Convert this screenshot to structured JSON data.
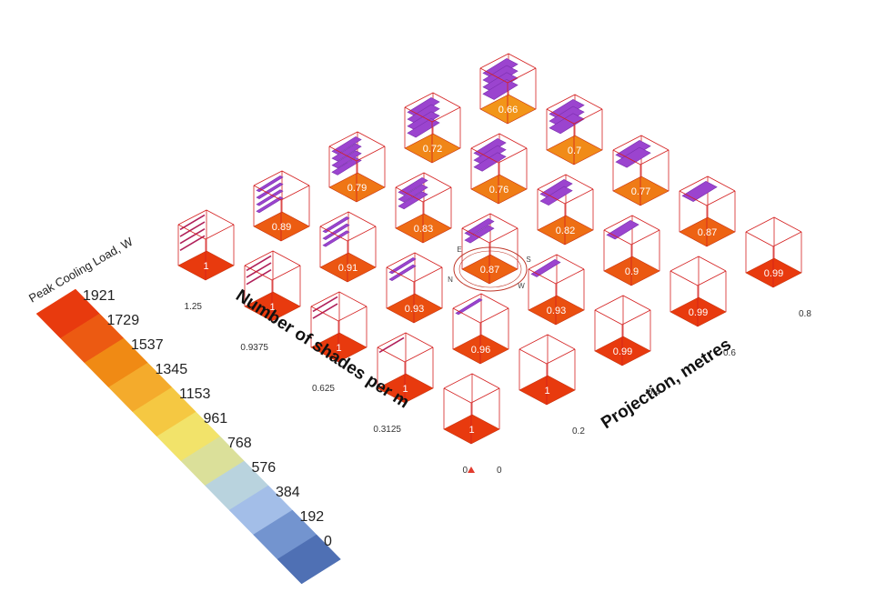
{
  "chart_data": {
    "type": "heatmap",
    "title": "",
    "x_axis": {
      "label": "Projection, metres",
      "ticks": [
        "0",
        "0.2",
        "0.4",
        "0.6",
        "0.8"
      ],
      "values": [
        0,
        0.2,
        0.4,
        0.6,
        0.8
      ]
    },
    "y_axis": {
      "label": "Number of shades per m",
      "ticks": [
        "0",
        "0.3125",
        "0.625",
        "0.9375",
        "1.25"
      ],
      "values": [
        0,
        0.3125,
        0.625,
        0.9375,
        1.25
      ]
    },
    "cells": [
      {
        "projection": 0,
        "shades": 0,
        "value": 1
      },
      {
        "projection": 0.2,
        "shades": 0,
        "value": 1
      },
      {
        "projection": 0.4,
        "shades": 0,
        "value": 0.99
      },
      {
        "projection": 0.6,
        "shades": 0,
        "value": 0.99
      },
      {
        "projection": 0.8,
        "shades": 0,
        "value": 0.99
      },
      {
        "projection": 0,
        "shades": 0.3125,
        "value": 1
      },
      {
        "projection": 0.2,
        "shades": 0.3125,
        "value": 0.96
      },
      {
        "projection": 0.4,
        "shades": 0.3125,
        "value": 0.93
      },
      {
        "projection": 0.6,
        "shades": 0.3125,
        "value": 0.9
      },
      {
        "projection": 0.8,
        "shades": 0.3125,
        "value": 0.87
      },
      {
        "projection": 0,
        "shades": 0.625,
        "value": 1
      },
      {
        "projection": 0.2,
        "shades": 0.625,
        "value": 0.93
      },
      {
        "projection": 0.4,
        "shades": 0.625,
        "value": 0.87
      },
      {
        "projection": 0.6,
        "shades": 0.625,
        "value": 0.82
      },
      {
        "projection": 0.8,
        "shades": 0.625,
        "value": 0.77
      },
      {
        "projection": 0,
        "shades": 0.9375,
        "value": 1
      },
      {
        "projection": 0.2,
        "shades": 0.9375,
        "value": 0.91
      },
      {
        "projection": 0.4,
        "shades": 0.9375,
        "value": 0.83
      },
      {
        "projection": 0.6,
        "shades": 0.9375,
        "value": 0.76
      },
      {
        "projection": 0.8,
        "shades": 0.9375,
        "value": 0.7
      },
      {
        "projection": 0,
        "shades": 1.25,
        "value": 1
      },
      {
        "projection": 0.2,
        "shades": 1.25,
        "value": 0.89
      },
      {
        "projection": 0.4,
        "shades": 1.25,
        "value": 0.79
      },
      {
        "projection": 0.6,
        "shades": 1.25,
        "value": 0.72
      },
      {
        "projection": 0.8,
        "shades": 1.25,
        "value": 0.66
      }
    ],
    "cell_colors": {
      "1": "#e83a0e",
      "0.99": "#e83a0e",
      "0.96": "#e9470f",
      "0.93": "#ea4f10",
      "0.91": "#eb5612",
      "0.9": "#eb5812",
      "0.89": "#ec5c12",
      "0.87": "#ed6213",
      "0.83": "#ee6c14",
      "0.82": "#ee6f14",
      "0.79": "#ef7615",
      "0.77": "#ef7b16",
      "0.76": "#ef7d16",
      "0.72": "#f08617",
      "0.7": "#f18b18",
      "0.66": "#f29519"
    },
    "legend": {
      "title": "Peak Cooling Load, W",
      "labels": [
        "1921",
        "1729",
        "1537",
        "1345",
        "1153",
        "961",
        "768",
        "576",
        "384",
        "192",
        "0"
      ],
      "colors": [
        "#e83a0e",
        "#ec5a12",
        "#f08a14",
        "#f4ab2c",
        "#f5c842",
        "#f2e36a",
        "#dbe09a",
        "#b9d3de",
        "#a3bee8",
        "#7394cf",
        "#4f70b4"
      ]
    },
    "compass": {
      "labels": [
        "N",
        "E",
        "S",
        "W"
      ]
    },
    "shade_color": "#9b44cf",
    "grid_line_color": "#d42020",
    "grid": false,
    "legend_position": "left"
  }
}
